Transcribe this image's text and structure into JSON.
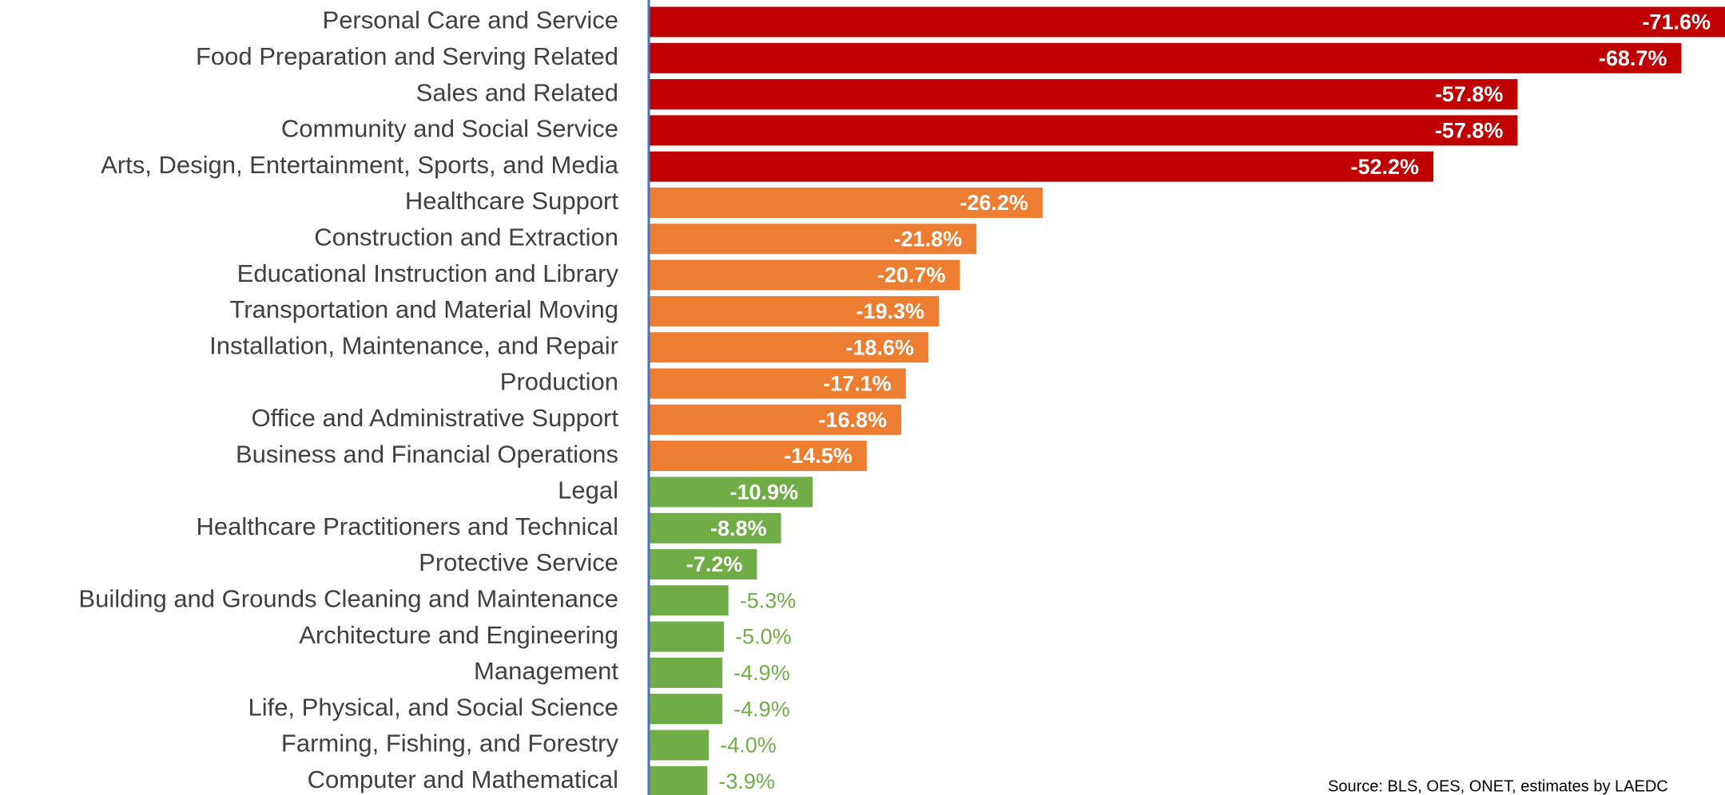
{
  "chart_data": {
    "type": "bar",
    "orientation": "horizontal",
    "categories": [
      "Personal Care and Service",
      "Food Preparation and Serving Related",
      "Sales and Related",
      "Community and Social Service",
      "Arts, Design, Entertainment, Sports, and Media",
      "Healthcare Support",
      "Construction and Extraction",
      "Educational Instruction and Library",
      "Transportation and Material Moving",
      "Installation, Maintenance, and Repair",
      "Production",
      "Office and Administrative Support",
      "Business and Financial Operations",
      "Legal",
      "Healthcare Practitioners and Technical",
      "Protective Service",
      "Building and Grounds Cleaning and Maintenance",
      "Architecture and Engineering",
      "Management",
      "Life, Physical, and Social Science",
      "Farming, Fishing, and Forestry",
      "Computer and Mathematical"
    ],
    "values": [
      -71.6,
      -68.7,
      -57.8,
      -57.8,
      -52.2,
      -26.2,
      -21.8,
      -20.7,
      -19.3,
      -18.6,
      -17.1,
      -16.8,
      -14.5,
      -10.9,
      -8.8,
      -7.2,
      -5.3,
      -5.0,
      -4.9,
      -4.9,
      -4.0,
      -3.9
    ],
    "value_labels": [
      "-71.6%",
      "-68.7%",
      "-57.8%",
      "-57.8%",
      "-52.2%",
      "-26.2%",
      "-21.8%",
      "-20.7%",
      "-19.3%",
      "-18.6%",
      "-17.1%",
      "-16.8%",
      "-14.5%",
      "-10.9%",
      "-8.8%",
      "-7.2%",
      "-5.3%",
      "-5.0%",
      "-4.9%",
      "-4.9%",
      "-4.0%",
      "-3.9%"
    ],
    "colors": [
      "#c00000",
      "#c00000",
      "#c00000",
      "#c00000",
      "#c00000",
      "#ed7d31",
      "#ed7d31",
      "#ed7d31",
      "#ed7d31",
      "#ed7d31",
      "#ed7d31",
      "#ed7d31",
      "#ed7d31",
      "#70ad47",
      "#70ad47",
      "#70ad47",
      "#70ad47",
      "#70ad47",
      "#70ad47",
      "#70ad47",
      "#70ad47",
      "#70ad47"
    ],
    "xlim": [
      0,
      -71.6
    ],
    "source": "Source: BLS, OES, ONET, estimates by LAEDC"
  }
}
